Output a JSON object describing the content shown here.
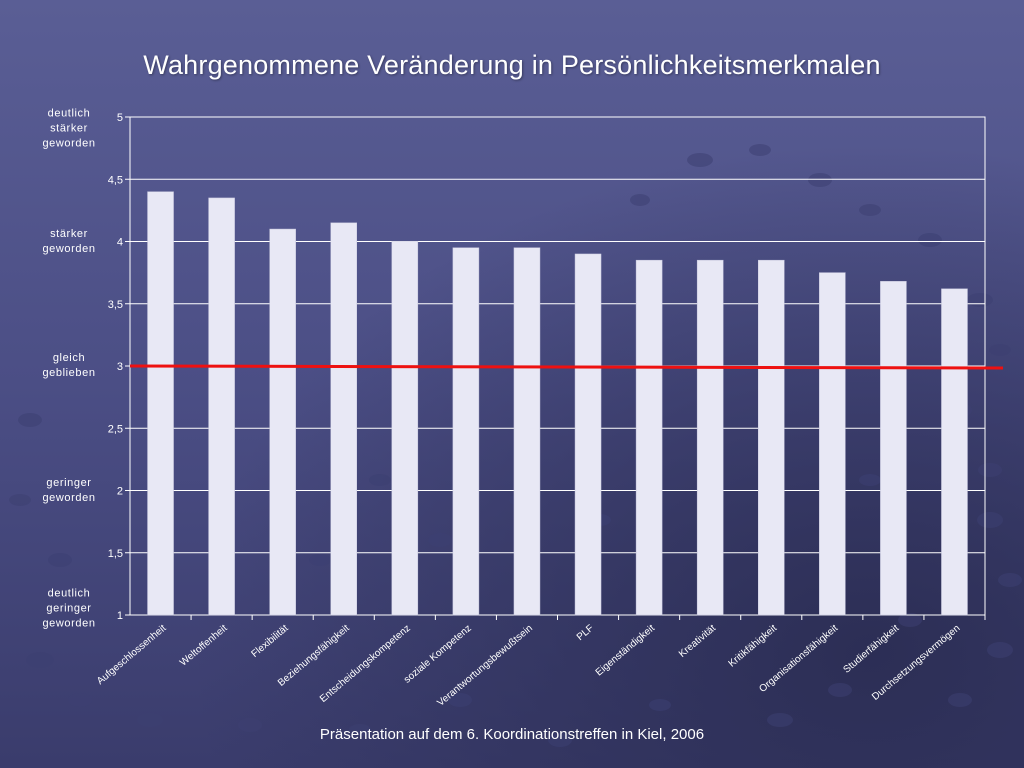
{
  "colors": {
    "bar": "#e8e8f5",
    "reference_line": "#ee1111",
    "grid": "#ffffff",
    "text": "#ffffff"
  },
  "footer": "Präsentation auf dem 6. Koordinationstreffen in Kiel, 2006",
  "chart_data": {
    "type": "bar",
    "title": "Wahrgenommene Veränderung in Persönlichkeitsmerkmalen",
    "categories": [
      "Aufgeschlossenheit",
      "Weltoffenheit",
      "Flexibilität",
      "Beziehungsfähigkeit",
      "Entscheidungskompetenz",
      "soziale Kompetenz",
      "Verantwortungsbewußtsein",
      "PLF",
      "Eigenständigkeit",
      "Kreativität",
      "Kritikfähigkeit",
      "Organisationsfähigkeit",
      "Studierfähigkeit",
      "Durchsetzungsvermögen"
    ],
    "values": [
      4.4,
      4.35,
      4.1,
      4.15,
      4.0,
      3.95,
      3.95,
      3.9,
      3.85,
      3.85,
      3.85,
      3.75,
      3.68,
      3.62
    ],
    "ylim": [
      1,
      5
    ],
    "yticks": [
      "1",
      "1,5",
      "2",
      "2,5",
      "3",
      "3,5",
      "4",
      "4,5",
      "5"
    ],
    "grid": true,
    "reference_line": 3,
    "ylabel_annotations": [
      {
        "value": 5,
        "lines": [
          "deutlich",
          "stärker",
          "geworden"
        ]
      },
      {
        "value": 4,
        "lines": [
          "stärker",
          "geworden"
        ]
      },
      {
        "value": 3,
        "lines": [
          "gleich",
          "geblieben"
        ]
      },
      {
        "value": 2,
        "lines": [
          "geringer",
          "geworden"
        ]
      },
      {
        "value": 1,
        "lines": [
          "deutlich",
          "geringer",
          "geworden"
        ]
      }
    ]
  }
}
